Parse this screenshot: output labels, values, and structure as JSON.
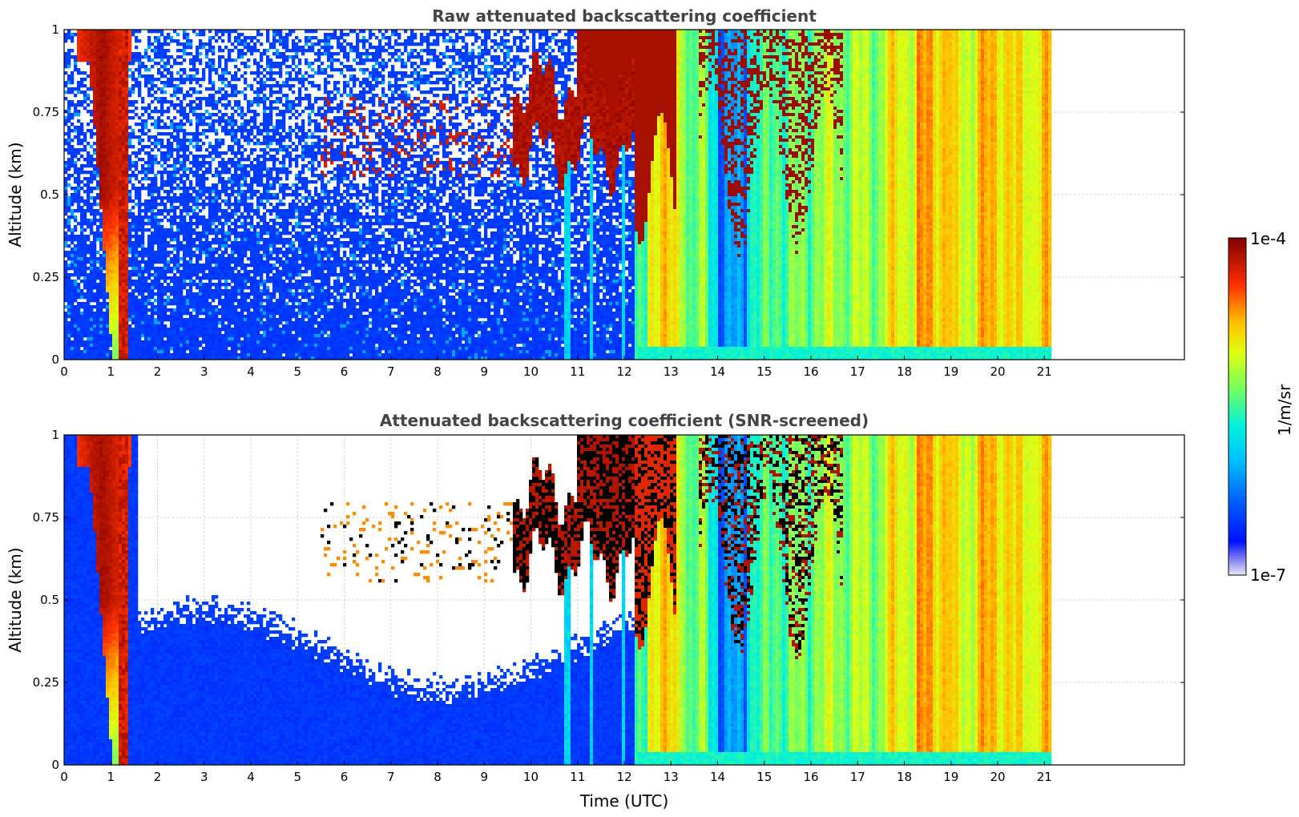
{
  "chart_data": [
    {
      "type": "heatmap",
      "title": "Raw attenuated backscattering coefficient",
      "xlabel": "",
      "ylabel": "Altitude (km)",
      "xlim": [
        0,
        24
      ],
      "ylim": [
        0,
        1
      ],
      "xticks": [
        "0",
        "1",
        "2",
        "3",
        "4",
        "5",
        "6",
        "7",
        "8",
        "9",
        "10",
        "11",
        "12",
        "13",
        "14",
        "15",
        "16",
        "17",
        "18",
        "19",
        "20",
        "21"
      ],
      "yticks": [
        "0",
        "0.25",
        "0.5",
        "0.75",
        "1"
      ],
      "grid": true,
      "data_extent_hours": [
        0,
        21.15
      ],
      "features": [
        {
          "x": [
            0.3,
            1.4
          ],
          "y": [
            0,
            1
          ],
          "level": "high",
          "note": "dense aerosol/cloud wedge 0-1.4 UTC"
        },
        {
          "x": [
            9.6,
            13.1
          ],
          "y": [
            0.6,
            1.0
          ],
          "level": "very high",
          "note": "cloud band"
        },
        {
          "x": [
            12.2,
            21.15
          ],
          "y": [
            0,
            1
          ],
          "level": "medium-high",
          "note": "boundary layer / fog"
        }
      ]
    },
    {
      "type": "heatmap",
      "title": "Attenuated backscattering coefficient (SNR-screened)",
      "xlabel": "Time (UTC)",
      "ylabel": "Altitude (km)",
      "xlim": [
        0,
        24
      ],
      "ylim": [
        0,
        1
      ],
      "xticks": [
        "0",
        "1",
        "2",
        "3",
        "4",
        "5",
        "6",
        "7",
        "8",
        "9",
        "10",
        "11",
        "12",
        "13",
        "14",
        "15",
        "16",
        "17",
        "18",
        "19",
        "20",
        "21"
      ],
      "yticks": [
        "0",
        "0.25",
        "0.5",
        "0.75",
        "1"
      ],
      "grid": true,
      "data_extent_hours": [
        0,
        21.15
      ]
    }
  ],
  "colorbar": {
    "label": "1/m/sr",
    "min_label": "1e-7",
    "max_label": "1e-4",
    "scale": "log",
    "colormap": [
      "#e8e8f8",
      "#0000ff",
      "#00bfff",
      "#00ffd0",
      "#80ff40",
      "#ffff00",
      "#ffa000",
      "#ff2000",
      "#800000"
    ]
  }
}
